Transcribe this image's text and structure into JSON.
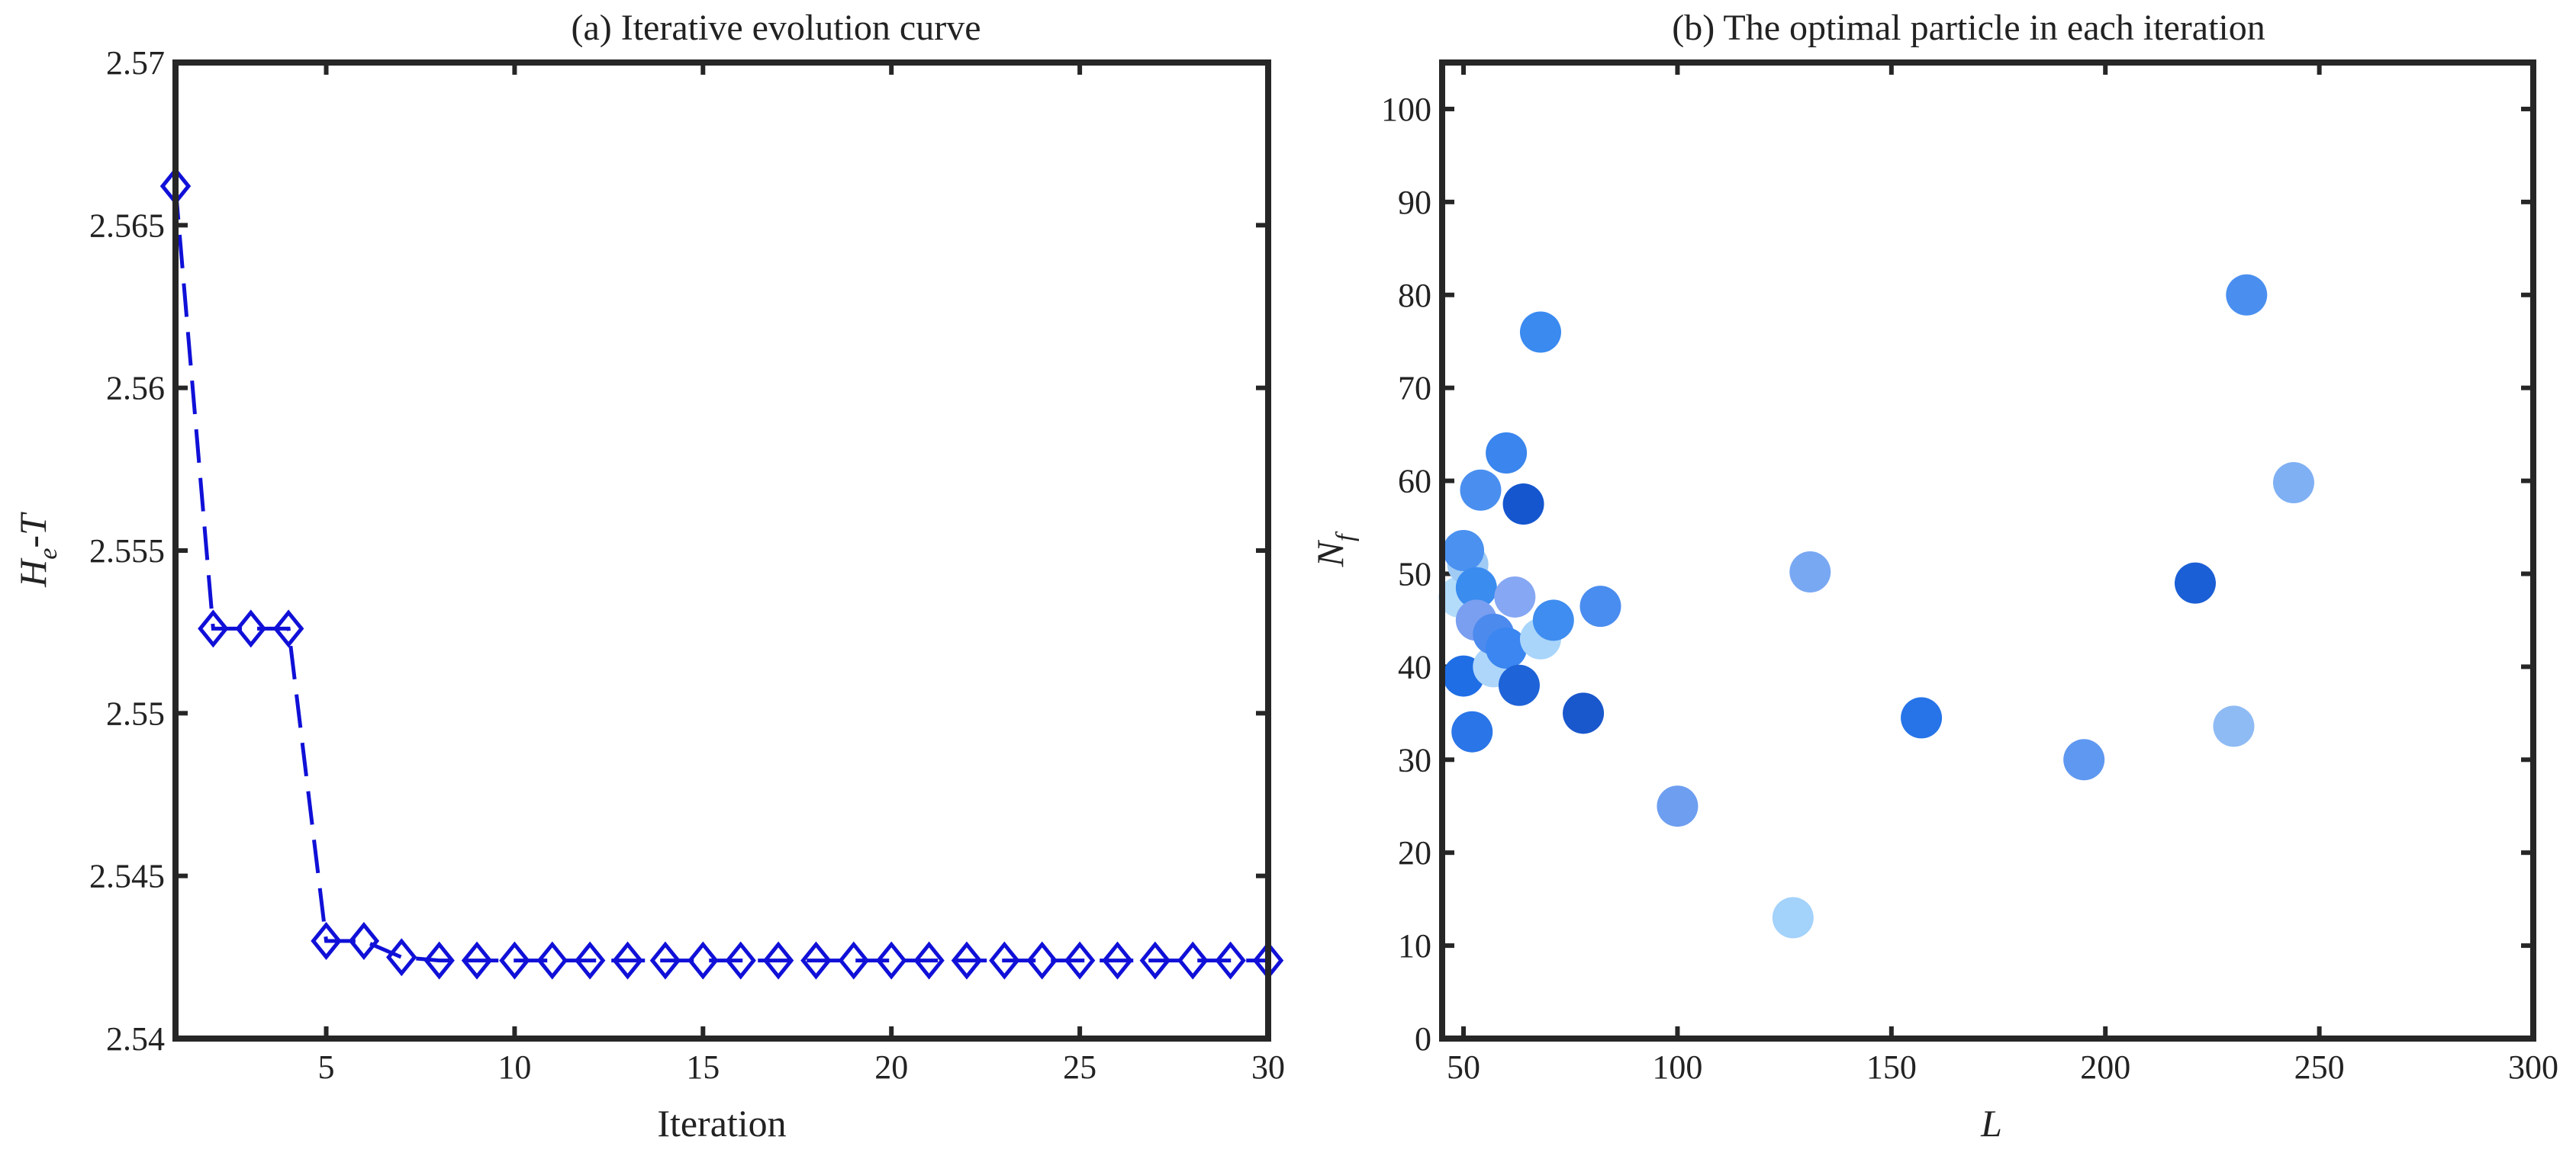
{
  "chart_data": [
    {
      "type": "line",
      "title": "(a) Iterative evolution curve",
      "xlabel": "Iteration",
      "ylabel": {
        "base": "H",
        "sub": "e",
        "suffix": "-T"
      },
      "xlim": [
        1,
        30
      ],
      "ylim": [
        2.54,
        2.57
      ],
      "xticks": [
        5,
        10,
        15,
        20,
        25,
        30
      ],
      "yticks": [
        2.54,
        2.545,
        2.55,
        2.555,
        2.56,
        2.565,
        2.57
      ],
      "ytick_labels": [
        "2.54",
        "2.545",
        "2.55",
        "2.555",
        "2.56",
        "2.565",
        "2.57"
      ],
      "series": [
        {
          "name": "He-T",
          "color": "#1010d8",
          "marker": "diamond",
          "line": "dashed",
          "x": [
            1,
            2,
            3,
            4,
            5,
            6,
            7,
            8,
            9,
            10,
            11,
            12,
            13,
            14,
            15,
            16,
            17,
            18,
            19,
            20,
            21,
            22,
            23,
            24,
            25,
            26,
            27,
            28,
            29,
            30
          ],
          "y": [
            2.5662,
            2.5526,
            2.5526,
            2.5526,
            2.543,
            2.543,
            2.5425,
            2.5424,
            2.5424,
            2.5424,
            2.5424,
            2.5424,
            2.5424,
            2.5424,
            2.5424,
            2.5424,
            2.5424,
            2.5424,
            2.5424,
            2.5424,
            2.5424,
            2.5424,
            2.5424,
            2.5424,
            2.5424,
            2.5424,
            2.5424,
            2.5424,
            2.5424,
            2.5424
          ]
        }
      ]
    },
    {
      "type": "scatter",
      "title": "(b) The optimal particle in each iteration",
      "xlabel": "L",
      "ylabel": {
        "base": "N",
        "sub": "f",
        "suffix": ""
      },
      "xlim": [
        45,
        300
      ],
      "ylim": [
        0,
        105
      ],
      "xticks": [
        50,
        100,
        150,
        200,
        250,
        300
      ],
      "yticks": [
        0,
        10,
        20,
        30,
        40,
        50,
        60,
        70,
        80,
        90,
        100
      ],
      "points": [
        {
          "x": 49,
          "y": 47.5,
          "color": "#b3dcfa"
        },
        {
          "x": 51,
          "y": 51,
          "color": "#9fcbf5"
        },
        {
          "x": 50,
          "y": 52.5,
          "color": "#4b91f0"
        },
        {
          "x": 53,
          "y": 48.5,
          "color": "#3a8cef"
        },
        {
          "x": 53,
          "y": 45,
          "color": "#7a9ff0"
        },
        {
          "x": 54,
          "y": 59,
          "color": "#4a8ff0"
        },
        {
          "x": 50,
          "y": 39,
          "color": "#1f6ee6"
        },
        {
          "x": 52,
          "y": 33,
          "color": "#2a75e8"
        },
        {
          "x": 57,
          "y": 40,
          "color": "#aed6fb"
        },
        {
          "x": 57,
          "y": 43.5,
          "color": "#4c8aee"
        },
        {
          "x": 60,
          "y": 42,
          "color": "#3b86f0"
        },
        {
          "x": 63,
          "y": 38,
          "color": "#1e63d8"
        },
        {
          "x": 60,
          "y": 63,
          "color": "#3a85ee"
        },
        {
          "x": 62,
          "y": 47.5,
          "color": "#86a7f3"
        },
        {
          "x": 64,
          "y": 57.5,
          "color": "#1556cf"
        },
        {
          "x": 68,
          "y": 43,
          "color": "#a9d5fb"
        },
        {
          "x": 71,
          "y": 45,
          "color": "#3f8df0"
        },
        {
          "x": 68,
          "y": 76,
          "color": "#3a8af0"
        },
        {
          "x": 78,
          "y": 35,
          "color": "#1957cc"
        },
        {
          "x": 82,
          "y": 46.5,
          "color": "#4a8df0"
        },
        {
          "x": 100,
          "y": 25,
          "color": "#6d9ef0"
        },
        {
          "x": 127,
          "y": 13,
          "color": "#a3d2fb"
        },
        {
          "x": 131,
          "y": 50.2,
          "color": "#79a8f3"
        },
        {
          "x": 157,
          "y": 34.5,
          "color": "#2674e8"
        },
        {
          "x": 195,
          "y": 30,
          "color": "#5f98f0"
        },
        {
          "x": 221,
          "y": 49,
          "color": "#1b5fd6"
        },
        {
          "x": 230,
          "y": 33.6,
          "color": "#8fbbf4"
        },
        {
          "x": 233,
          "y": 80,
          "color": "#4a8ff0"
        },
        {
          "x": 244,
          "y": 59.8,
          "color": "#7fb0f4"
        }
      ]
    }
  ]
}
